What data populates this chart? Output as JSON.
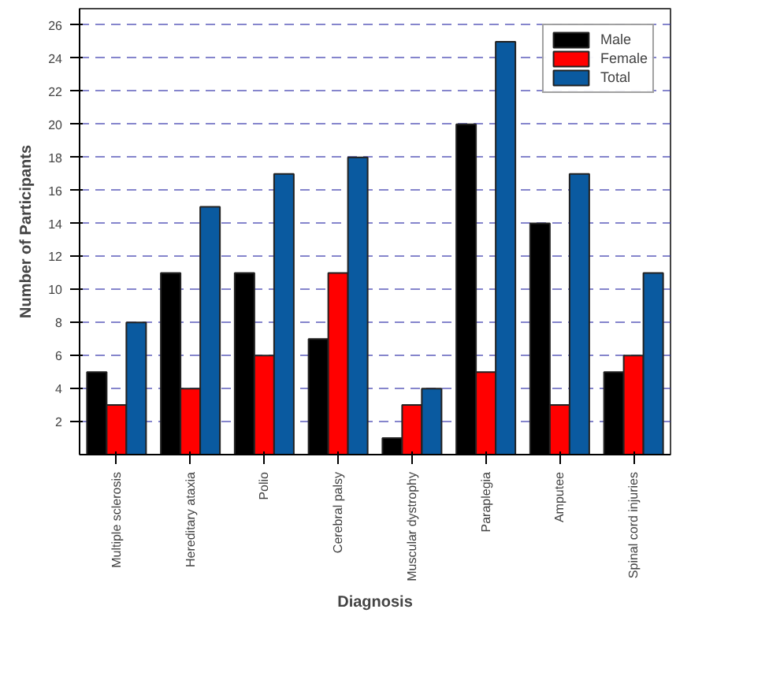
{
  "chart_data": {
    "type": "bar",
    "xlabel": "Diagnosis",
    "ylabel": "Number of Participants",
    "categories": [
      "Multiple sclerosis",
      "Hereditary ataxia",
      "Polio",
      "Cerebral palsy",
      "Muscular dystrophy",
      "Paraplegia",
      "Amputee",
      "Spinal cord injuries"
    ],
    "series": [
      {
        "name": "Male",
        "color": "#000000",
        "values": [
          5,
          11,
          11,
          7,
          1,
          20,
          14,
          5
        ]
      },
      {
        "name": "Female",
        "color": "#ff0000",
        "values": [
          3,
          4,
          6,
          11,
          3,
          5,
          3,
          6
        ]
      },
      {
        "name": "Total",
        "color": "#0a5aa0",
        "values": [
          8,
          15,
          17,
          18,
          4,
          25,
          17,
          11
        ]
      }
    ],
    "ylim": [
      0,
      27
    ],
    "yticks": [
      2,
      4,
      6,
      8,
      10,
      12,
      14,
      16,
      18,
      20,
      22,
      24,
      26
    ],
    "grid": "y",
    "legend": "top right"
  }
}
